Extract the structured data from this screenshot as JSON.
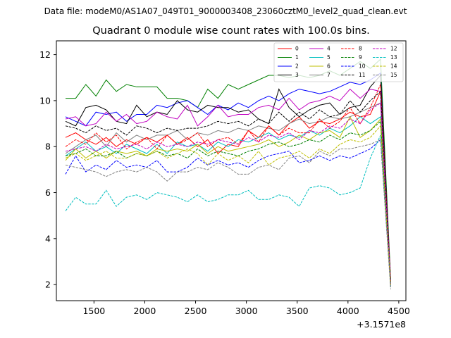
{
  "suptitle": "Data file: modeM0/AS1A07_049T01_9000003408_23060cztM0_level2_quad_clean.evt",
  "chart_data": {
    "type": "line",
    "title": "Quadrant 0 module wise count rates with 100.0s bins.",
    "xlabel": "",
    "ylabel": "",
    "x_offset_label": "+3.1571e8",
    "xlim": [
      1130,
      4570
    ],
    "ylim": [
      1.3,
      12.6
    ],
    "xticks": [
      1500,
      2000,
      2500,
      3000,
      3500,
      4000,
      4500
    ],
    "yticks": [
      2,
      4,
      6,
      8,
      10,
      12
    ],
    "grid": false,
    "legend_position": "top-right",
    "legend_columns": 4,
    "x": [
      1220,
      1320,
      1420,
      1520,
      1620,
      1720,
      1820,
      1920,
      2020,
      2120,
      2220,
      2320,
      2420,
      2520,
      2620,
      2720,
      2820,
      2920,
      3020,
      3120,
      3220,
      3320,
      3420,
      3520,
      3620,
      3720,
      3820,
      3920,
      4020,
      4120,
      4220,
      4320,
      4420
    ],
    "series": [
      {
        "name": "0",
        "color": "#ff0000",
        "dash": "solid",
        "values": [
          8.4,
          8.6,
          8.3,
          8.1,
          8.4,
          8.0,
          8.3,
          8.1,
          8.4,
          8.2,
          8.5,
          8.1,
          8.4,
          8.0,
          8.3,
          7.7,
          8.1,
          8.0,
          8.7,
          8.4,
          8.9,
          8.5,
          9.0,
          9.3,
          8.8,
          9.1,
          9.0,
          9.2,
          9.5,
          9.3,
          9.4,
          10.4,
          2.2
        ]
      },
      {
        "name": "1",
        "color": "#008000",
        "dash": "solid",
        "values": [
          10.1,
          10.1,
          10.7,
          10.2,
          10.9,
          10.4,
          10.7,
          10.6,
          10.6,
          10.6,
          10.1,
          10.1,
          10.0,
          9.7,
          10.5,
          10.1,
          10.7,
          10.5,
          10.7,
          10.9,
          11.1,
          11.1,
          11.0,
          11.1,
          11.0,
          11.1,
          11.3,
          11.1,
          11.4,
          11.7,
          11.4,
          11.8,
          2.2
        ]
      },
      {
        "name": "2",
        "color": "#0000ff",
        "dash": "solid",
        "values": [
          9.3,
          9.1,
          8.9,
          9.5,
          9.4,
          9.5,
          9.1,
          9.4,
          9.4,
          9.8,
          9.7,
          9.9,
          10.0,
          9.7,
          9.4,
          9.8,
          9.6,
          9.9,
          9.7,
          10.0,
          10.2,
          10.0,
          10.3,
          10.5,
          10.4,
          10.3,
          10.4,
          10.6,
          10.8,
          10.7,
          10.9,
          11.2,
          2.0
        ]
      },
      {
        "name": "3",
        "color": "#000000",
        "dash": "solid",
        "values": [
          9.1,
          8.9,
          9.7,
          9.8,
          9.6,
          9.1,
          9.0,
          9.8,
          9.3,
          9.5,
          9.4,
          10.0,
          9.6,
          9.5,
          9.8,
          9.7,
          9.7,
          9.5,
          9.6,
          9.2,
          9.0,
          10.5,
          9.7,
          9.3,
          9.6,
          9.8,
          9.9,
          9.4,
          9.7,
          9.8,
          10.6,
          11.1,
          2.0
        ]
      },
      {
        "name": "4",
        "color": "#c000c0",
        "dash": "solid",
        "values": [
          9.2,
          9.3,
          8.9,
          9.0,
          9.5,
          9.1,
          9.4,
          9.0,
          9.1,
          9.5,
          9.3,
          9.2,
          9.8,
          8.9,
          9.3,
          9.8,
          9.3,
          9.4,
          9.4,
          9.7,
          9.8,
          9.6,
          10.1,
          9.6,
          9.9,
          10.0,
          10.2,
          10.0,
          10.5,
          10.1,
          10.5,
          10.4,
          2.1
        ]
      },
      {
        "name": "5",
        "color": "#00bfbf",
        "dash": "solid",
        "values": [
          7.6,
          7.9,
          8.2,
          7.8,
          8.0,
          7.7,
          8.1,
          7.9,
          7.7,
          8.1,
          7.7,
          8.2,
          8.0,
          8.1,
          7.8,
          8.2,
          8.0,
          8.3,
          8.2,
          8.4,
          8.6,
          8.3,
          8.5,
          8.4,
          8.7,
          8.5,
          8.8,
          8.6,
          8.9,
          9.3,
          9.0,
          9.3,
          2.0
        ]
      },
      {
        "name": "6",
        "color": "#bfbf00",
        "dash": "solid",
        "values": [
          7.4,
          7.9,
          7.5,
          7.8,
          7.5,
          7.8,
          7.7,
          7.8,
          7.6,
          7.9,
          7.8,
          7.9,
          7.8,
          8.1,
          7.7,
          8.0,
          7.8,
          7.9,
          8.0,
          8.1,
          8.3,
          8.0,
          8.2,
          8.5,
          8.3,
          8.6,
          8.7,
          8.4,
          9.3,
          8.4,
          8.7,
          9.2,
          2.0
        ]
      },
      {
        "name": "7",
        "color": "#808080",
        "dash": "solid",
        "values": [
          7.7,
          8.0,
          8.3,
          8.5,
          8.0,
          8.6,
          8.2,
          8.5,
          8.3,
          8.5,
          8.5,
          8.7,
          8.3,
          8.6,
          8.5,
          8.7,
          8.6,
          8.8,
          8.7,
          8.9,
          8.8,
          8.7,
          9.0,
          9.2,
          9.0,
          9.1,
          9.3,
          9.2,
          9.3,
          9.5,
          9.7,
          9.9,
          1.9
        ]
      },
      {
        "name": "8",
        "color": "#ff0000",
        "dash": "dashed",
        "values": [
          8.0,
          8.3,
          8.1,
          8.6,
          8.2,
          8.5,
          7.9,
          8.2,
          8.4,
          7.9,
          8.5,
          8.1,
          8.3,
          8.6,
          8.0,
          8.3,
          8.4,
          8.1,
          8.7,
          8.2,
          8.9,
          8.5,
          8.8,
          8.6,
          8.6,
          9.2,
          8.8,
          9.1,
          9.7,
          9.0,
          9.7,
          10.7,
          2.1
        ]
      },
      {
        "name": "9",
        "color": "#008000",
        "dash": "dashed",
        "values": [
          7.6,
          7.7,
          7.9,
          7.6,
          7.6,
          7.8,
          7.5,
          7.7,
          7.6,
          7.8,
          7.6,
          7.7,
          7.5,
          7.9,
          7.6,
          7.8,
          7.7,
          7.6,
          7.8,
          7.9,
          8.1,
          8.2,
          8.0,
          8.1,
          8.3,
          8.2,
          8.5,
          8.3,
          8.6,
          8.5,
          8.7,
          9.1,
          2.0
        ]
      },
      {
        "name": "10",
        "color": "#0000ff",
        "dash": "dashed",
        "values": [
          6.8,
          7.6,
          6.9,
          7.2,
          7.0,
          7.4,
          7.1,
          7.2,
          7.1,
          7.4,
          6.9,
          6.9,
          7.1,
          7.5,
          7.2,
          7.4,
          7.2,
          7.3,
          7.1,
          7.4,
          7.6,
          7.7,
          7.8,
          7.3,
          7.4,
          7.6,
          7.4,
          7.6,
          7.5,
          7.7,
          7.9,
          8.3,
          1.9
        ]
      },
      {
        "name": "11",
        "color": "#000000",
        "dash": "dashed",
        "values": [
          8.9,
          8.8,
          8.6,
          8.9,
          8.7,
          8.8,
          8.5,
          8.9,
          8.8,
          8.6,
          8.8,
          8.7,
          8.8,
          8.8,
          8.9,
          9.1,
          9.0,
          9.1,
          8.9,
          9.2,
          9.0,
          9.5,
          9.1,
          9.5,
          9.2,
          9.6,
          9.3,
          9.4,
          10.0,
          9.5,
          10.0,
          10.4,
          2.0
        ]
      },
      {
        "name": "12",
        "color": "#c000c0",
        "dash": "dashed",
        "values": [
          7.8,
          7.9,
          8.0,
          7.8,
          8.1,
          7.9,
          8.0,
          8.1,
          7.9,
          8.2,
          8.0,
          8.1,
          8.0,
          8.2,
          8.1,
          8.3,
          8.2,
          8.1,
          8.4,
          8.2,
          8.5,
          8.4,
          8.6,
          8.3,
          8.7,
          8.6,
          8.9,
          8.8,
          9.2,
          9.0,
          9.6,
          9.9,
          2.0
        ]
      },
      {
        "name": "13",
        "color": "#00bfbf",
        "dash": "dashed",
        "values": [
          5.2,
          5.8,
          5.5,
          5.5,
          6.1,
          5.4,
          5.8,
          5.9,
          5.7,
          6.0,
          5.9,
          5.8,
          5.6,
          5.9,
          5.6,
          5.7,
          5.9,
          5.9,
          6.1,
          5.7,
          5.7,
          5.9,
          5.8,
          5.4,
          6.2,
          6.3,
          6.2,
          5.9,
          6.0,
          6.2,
          7.5,
          8.5,
          1.9
        ]
      },
      {
        "name": "14",
        "color": "#bfbf00",
        "dash": "dashed",
        "values": [
          7.5,
          7.7,
          7.4,
          7.6,
          7.8,
          7.5,
          7.5,
          7.7,
          7.6,
          7.8,
          7.5,
          7.7,
          7.9,
          7.7,
          7.2,
          7.7,
          7.4,
          7.6,
          7.3,
          7.8,
          7.2,
          7.5,
          7.6,
          7.8,
          7.5,
          7.9,
          7.7,
          8.1,
          8.3,
          8.2,
          8.4,
          8.9,
          1.9
        ]
      },
      {
        "name": "15",
        "color": "#808080",
        "dash": "dashed",
        "values": [
          7.2,
          7.1,
          7.0,
          6.9,
          6.7,
          6.9,
          7.0,
          6.9,
          7.1,
          6.9,
          6.5,
          6.9,
          6.9,
          7.1,
          7.0,
          7.3,
          7.1,
          6.8,
          6.8,
          7.1,
          7.2,
          7.0,
          7.5,
          7.6,
          7.3,
          7.8,
          7.6,
          7.9,
          7.9,
          8.0,
          8.1,
          8.3,
          1.8
        ]
      }
    ]
  }
}
